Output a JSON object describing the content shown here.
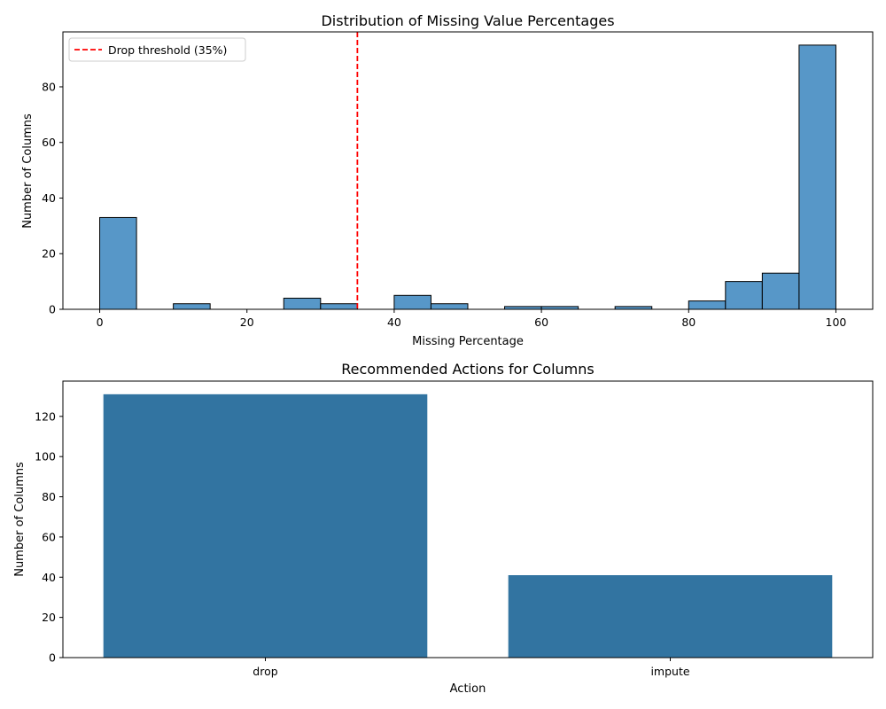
{
  "colors": {
    "hist_fill": "#5797C8",
    "hist_edge": "#000000",
    "bar_fill": "#3274A1",
    "threshold_line": "#FF0000",
    "axis": "#000000",
    "background": "#ffffff"
  },
  "chart_data": [
    {
      "type": "bar",
      "subtype": "histogram",
      "title": "Distribution of Missing Value Percentages",
      "xlabel": "Missing Percentage",
      "ylabel": "Number of Columns",
      "xlim": [
        -5,
        105
      ],
      "ylim": [
        0,
        99.75
      ],
      "xticks": [
        0,
        20,
        40,
        60,
        80,
        100
      ],
      "yticks": [
        0,
        20,
        40,
        60,
        80
      ],
      "grid": false,
      "bin_width": 5,
      "bins": [
        {
          "start": 0,
          "end": 5,
          "count": 33
        },
        {
          "start": 5,
          "end": 10,
          "count": 0
        },
        {
          "start": 10,
          "end": 15,
          "count": 2
        },
        {
          "start": 15,
          "end": 20,
          "count": 0
        },
        {
          "start": 20,
          "end": 25,
          "count": 0
        },
        {
          "start": 25,
          "end": 30,
          "count": 4
        },
        {
          "start": 30,
          "end": 35,
          "count": 2
        },
        {
          "start": 35,
          "end": 40,
          "count": 0
        },
        {
          "start": 40,
          "end": 45,
          "count": 5
        },
        {
          "start": 45,
          "end": 50,
          "count": 2
        },
        {
          "start": 50,
          "end": 55,
          "count": 0
        },
        {
          "start": 55,
          "end": 60,
          "count": 1
        },
        {
          "start": 60,
          "end": 65,
          "count": 1
        },
        {
          "start": 65,
          "end": 70,
          "count": 0
        },
        {
          "start": 70,
          "end": 75,
          "count": 1
        },
        {
          "start": 75,
          "end": 80,
          "count": 0
        },
        {
          "start": 80,
          "end": 85,
          "count": 3
        },
        {
          "start": 85,
          "end": 90,
          "count": 10
        },
        {
          "start": 90,
          "end": 95,
          "count": 13
        },
        {
          "start": 95,
          "end": 100,
          "count": 95
        }
      ],
      "threshold": {
        "x": 35,
        "label": "Drop threshold (35%)",
        "style": "dashed"
      },
      "legend": {
        "placement": "top-left",
        "entries": [
          "Drop threshold (35%)"
        ]
      }
    },
    {
      "type": "bar",
      "title": "Recommended Actions for Columns",
      "xlabel": "Action",
      "ylabel": "Number of Columns",
      "categories": [
        "drop",
        "impute"
      ],
      "values": [
        131,
        41
      ],
      "ylim": [
        0,
        137.55
      ],
      "yticks": [
        0,
        20,
        40,
        60,
        80,
        100,
        120
      ],
      "grid": false
    }
  ]
}
